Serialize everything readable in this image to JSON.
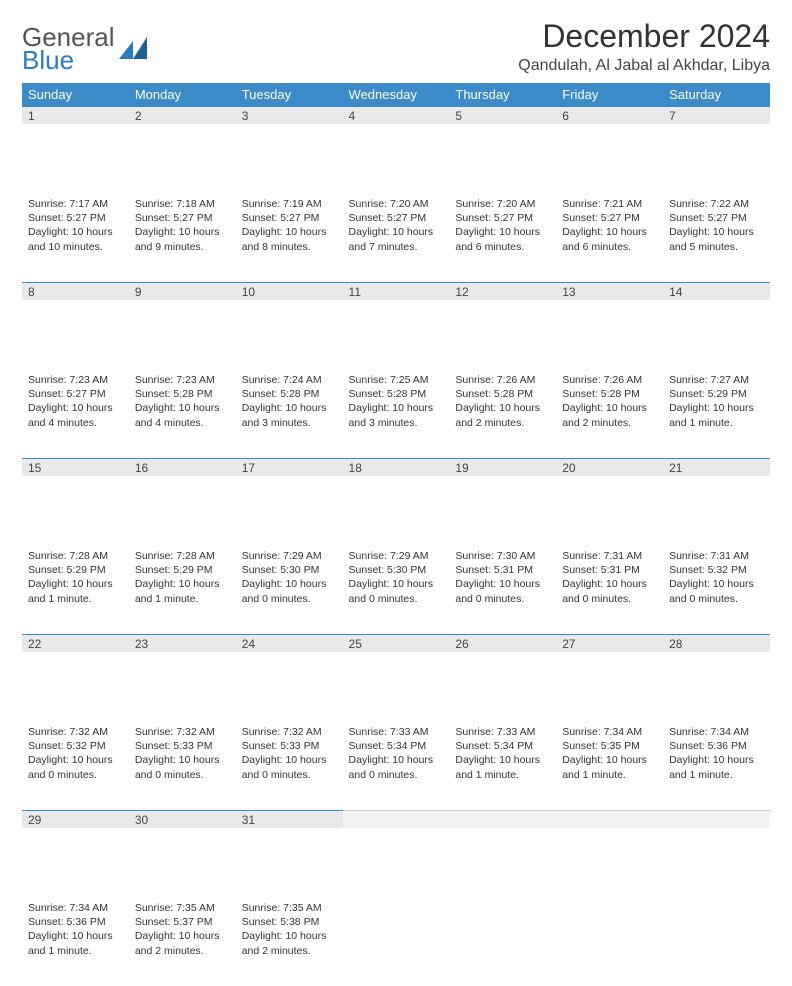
{
  "brand": {
    "line1": "General",
    "line2": "Blue"
  },
  "title": "December 2024",
  "location": "Qandulah, Al Jabal al Akhdar, Libya",
  "colors": {
    "header_bg": "#3b8bc9",
    "header_text": "#ffffff",
    "daynum_bg": "#e9e9e9",
    "daynum_border": "#3b8bc9",
    "text": "#333333",
    "brand_blue": "#2b7bbf",
    "page_bg": "#ffffff"
  },
  "weekdays": [
    "Sunday",
    "Monday",
    "Tuesday",
    "Wednesday",
    "Thursday",
    "Friday",
    "Saturday"
  ],
  "weeks": [
    [
      {
        "n": "1",
        "sunrise": "Sunrise: 7:17 AM",
        "sunset": "Sunset: 5:27 PM",
        "daylight": "Daylight: 10 hours and 10 minutes."
      },
      {
        "n": "2",
        "sunrise": "Sunrise: 7:18 AM",
        "sunset": "Sunset: 5:27 PM",
        "daylight": "Daylight: 10 hours and 9 minutes."
      },
      {
        "n": "3",
        "sunrise": "Sunrise: 7:19 AM",
        "sunset": "Sunset: 5:27 PM",
        "daylight": "Daylight: 10 hours and 8 minutes."
      },
      {
        "n": "4",
        "sunrise": "Sunrise: 7:20 AM",
        "sunset": "Sunset: 5:27 PM",
        "daylight": "Daylight: 10 hours and 7 minutes."
      },
      {
        "n": "5",
        "sunrise": "Sunrise: 7:20 AM",
        "sunset": "Sunset: 5:27 PM",
        "daylight": "Daylight: 10 hours and 6 minutes."
      },
      {
        "n": "6",
        "sunrise": "Sunrise: 7:21 AM",
        "sunset": "Sunset: 5:27 PM",
        "daylight": "Daylight: 10 hours and 6 minutes."
      },
      {
        "n": "7",
        "sunrise": "Sunrise: 7:22 AM",
        "sunset": "Sunset: 5:27 PM",
        "daylight": "Daylight: 10 hours and 5 minutes."
      }
    ],
    [
      {
        "n": "8",
        "sunrise": "Sunrise: 7:23 AM",
        "sunset": "Sunset: 5:27 PM",
        "daylight": "Daylight: 10 hours and 4 minutes."
      },
      {
        "n": "9",
        "sunrise": "Sunrise: 7:23 AM",
        "sunset": "Sunset: 5:28 PM",
        "daylight": "Daylight: 10 hours and 4 minutes."
      },
      {
        "n": "10",
        "sunrise": "Sunrise: 7:24 AM",
        "sunset": "Sunset: 5:28 PM",
        "daylight": "Daylight: 10 hours and 3 minutes."
      },
      {
        "n": "11",
        "sunrise": "Sunrise: 7:25 AM",
        "sunset": "Sunset: 5:28 PM",
        "daylight": "Daylight: 10 hours and 3 minutes."
      },
      {
        "n": "12",
        "sunrise": "Sunrise: 7:26 AM",
        "sunset": "Sunset: 5:28 PM",
        "daylight": "Daylight: 10 hours and 2 minutes."
      },
      {
        "n": "13",
        "sunrise": "Sunrise: 7:26 AM",
        "sunset": "Sunset: 5:28 PM",
        "daylight": "Daylight: 10 hours and 2 minutes."
      },
      {
        "n": "14",
        "sunrise": "Sunrise: 7:27 AM",
        "sunset": "Sunset: 5:29 PM",
        "daylight": "Daylight: 10 hours and 1 minute."
      }
    ],
    [
      {
        "n": "15",
        "sunrise": "Sunrise: 7:28 AM",
        "sunset": "Sunset: 5:29 PM",
        "daylight": "Daylight: 10 hours and 1 minute."
      },
      {
        "n": "16",
        "sunrise": "Sunrise: 7:28 AM",
        "sunset": "Sunset: 5:29 PM",
        "daylight": "Daylight: 10 hours and 1 minute."
      },
      {
        "n": "17",
        "sunrise": "Sunrise: 7:29 AM",
        "sunset": "Sunset: 5:30 PM",
        "daylight": "Daylight: 10 hours and 0 minutes."
      },
      {
        "n": "18",
        "sunrise": "Sunrise: 7:29 AM",
        "sunset": "Sunset: 5:30 PM",
        "daylight": "Daylight: 10 hours and 0 minutes."
      },
      {
        "n": "19",
        "sunrise": "Sunrise: 7:30 AM",
        "sunset": "Sunset: 5:31 PM",
        "daylight": "Daylight: 10 hours and 0 minutes."
      },
      {
        "n": "20",
        "sunrise": "Sunrise: 7:31 AM",
        "sunset": "Sunset: 5:31 PM",
        "daylight": "Daylight: 10 hours and 0 minutes."
      },
      {
        "n": "21",
        "sunrise": "Sunrise: 7:31 AM",
        "sunset": "Sunset: 5:32 PM",
        "daylight": "Daylight: 10 hours and 0 minutes."
      }
    ],
    [
      {
        "n": "22",
        "sunrise": "Sunrise: 7:32 AM",
        "sunset": "Sunset: 5:32 PM",
        "daylight": "Daylight: 10 hours and 0 minutes."
      },
      {
        "n": "23",
        "sunrise": "Sunrise: 7:32 AM",
        "sunset": "Sunset: 5:33 PM",
        "daylight": "Daylight: 10 hours and 0 minutes."
      },
      {
        "n": "24",
        "sunrise": "Sunrise: 7:32 AM",
        "sunset": "Sunset: 5:33 PM",
        "daylight": "Daylight: 10 hours and 0 minutes."
      },
      {
        "n": "25",
        "sunrise": "Sunrise: 7:33 AM",
        "sunset": "Sunset: 5:34 PM",
        "daylight": "Daylight: 10 hours and 0 minutes."
      },
      {
        "n": "26",
        "sunrise": "Sunrise: 7:33 AM",
        "sunset": "Sunset: 5:34 PM",
        "daylight": "Daylight: 10 hours and 1 minute."
      },
      {
        "n": "27",
        "sunrise": "Sunrise: 7:34 AM",
        "sunset": "Sunset: 5:35 PM",
        "daylight": "Daylight: 10 hours and 1 minute."
      },
      {
        "n": "28",
        "sunrise": "Sunrise: 7:34 AM",
        "sunset": "Sunset: 5:36 PM",
        "daylight": "Daylight: 10 hours and 1 minute."
      }
    ],
    [
      {
        "n": "29",
        "sunrise": "Sunrise: 7:34 AM",
        "sunset": "Sunset: 5:36 PM",
        "daylight": "Daylight: 10 hours and 1 minute."
      },
      {
        "n": "30",
        "sunrise": "Sunrise: 7:35 AM",
        "sunset": "Sunset: 5:37 PM",
        "daylight": "Daylight: 10 hours and 2 minutes."
      },
      {
        "n": "31",
        "sunrise": "Sunrise: 7:35 AM",
        "sunset": "Sunset: 5:38 PM",
        "daylight": "Daylight: 10 hours and 2 minutes."
      },
      null,
      null,
      null,
      null
    ]
  ]
}
